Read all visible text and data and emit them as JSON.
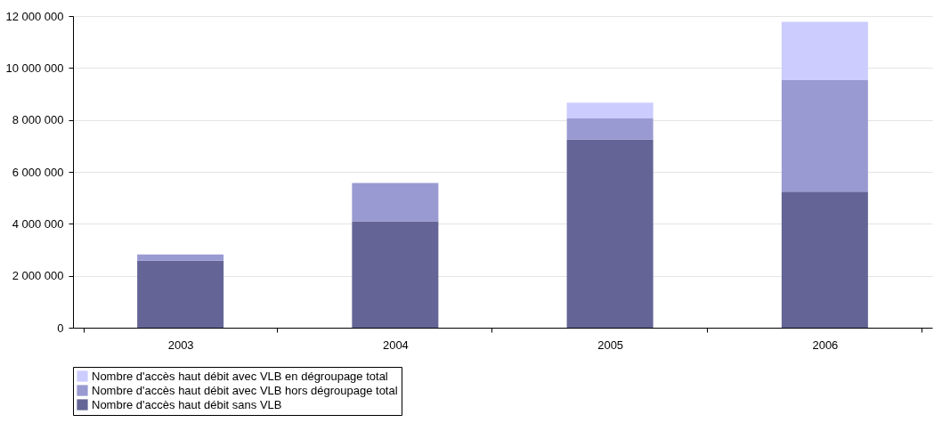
{
  "chart_data": {
    "type": "bar",
    "stacked": true,
    "categories": [
      "2003",
      "2004",
      "2005",
      "2006"
    ],
    "series": [
      {
        "name": "Nombre d'accès haut débit sans VLB",
        "color": "#646496",
        "values": [
          2580000,
          4100000,
          7240000,
          5240000
        ]
      },
      {
        "name": "Nombre d'accès haut débit avec VLB hors dégroupage total",
        "color": "#9a9ad2",
        "values": [
          240000,
          1470000,
          820000,
          4290000
        ]
      },
      {
        "name": "Nombre d'accès haut débit avec VLB en dégroupage total",
        "color": "#ccccff",
        "values": [
          0,
          0,
          610000,
          2250000
        ]
      }
    ],
    "ylim": [
      0,
      12000000
    ],
    "yticks": [
      {
        "value": 0,
        "label": "0"
      },
      {
        "value": 2000000,
        "label": "2 000 000"
      },
      {
        "value": 4000000,
        "label": "4 000 000"
      },
      {
        "value": 6000000,
        "label": "6 000 000"
      },
      {
        "value": 8000000,
        "label": "8 000 000"
      },
      {
        "value": 10000000,
        "label": "10 000 000"
      },
      {
        "value": 12000000,
        "label": "12 000 000"
      }
    ],
    "grid": "y",
    "legend": "bottom"
  }
}
